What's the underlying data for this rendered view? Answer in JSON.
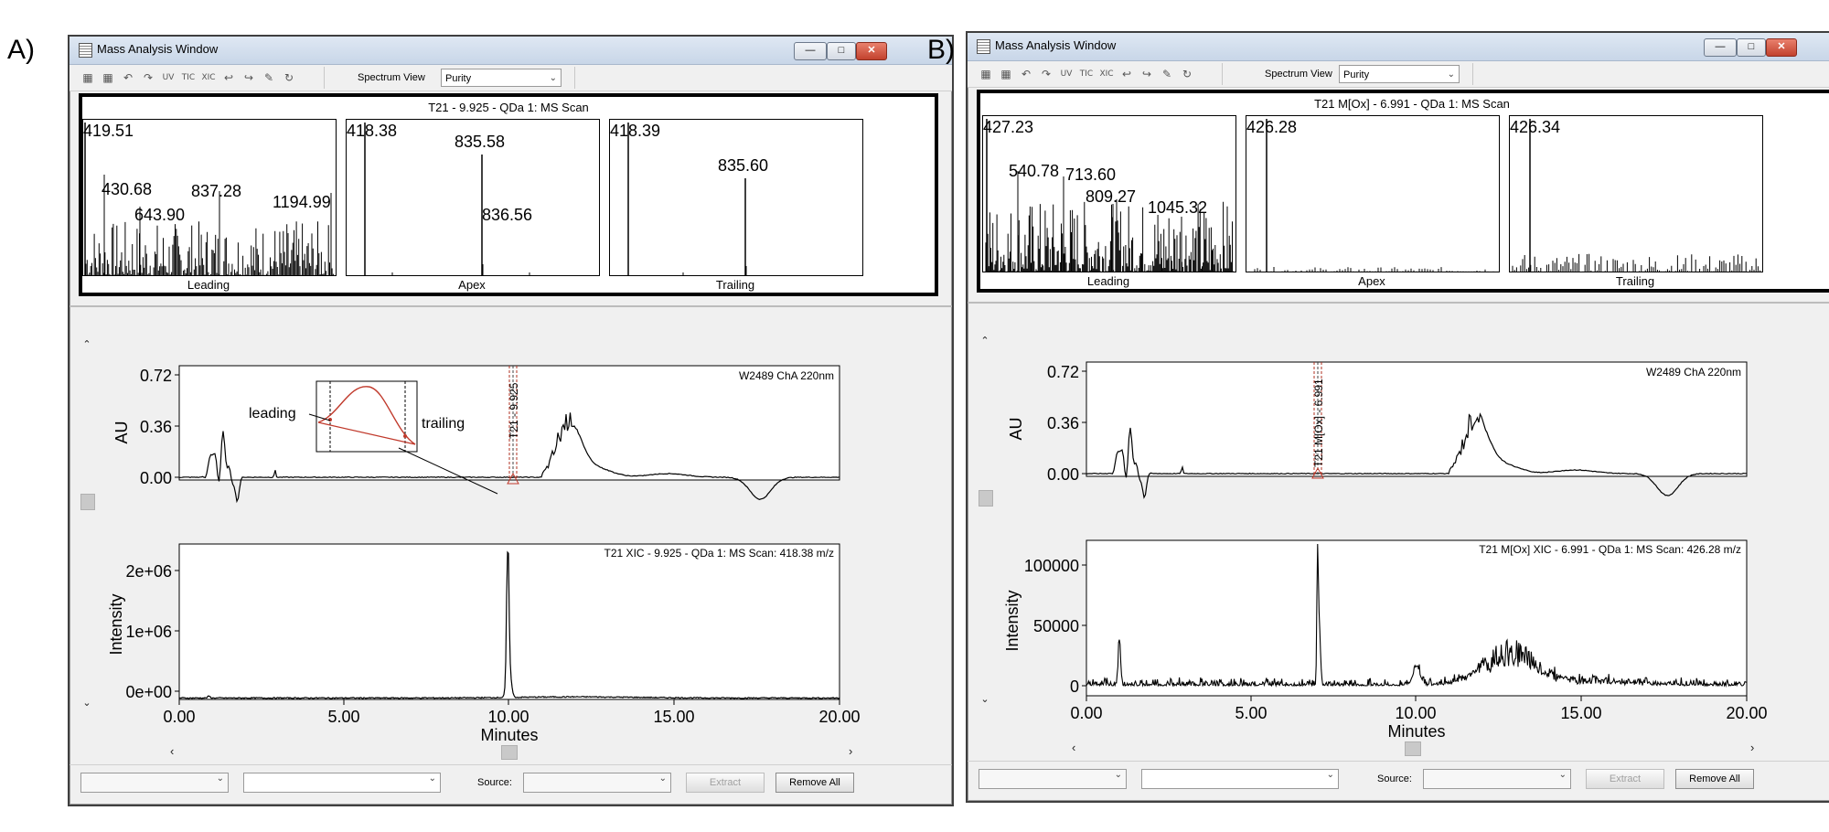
{
  "panels": [
    {
      "label": "A)",
      "window_title": "Mass Analysis Window",
      "toolbar": {
        "spectrum_view_label": "Spectrum View",
        "spectrum_view_value": "Purity"
      },
      "spectrum_title": "T21 - 9.925 - QDa 1: MS Scan",
      "spectra": [
        {
          "name": "Leading",
          "labels": [
            "419.51",
            "430.68",
            "643.90",
            "837.28",
            "1194.99"
          ]
        },
        {
          "name": "Apex",
          "labels": [
            "418.38",
            "835.58",
            "836.56"
          ]
        },
        {
          "name": "Trailing",
          "labels": [
            "418.39",
            "835.60"
          ]
        }
      ],
      "uv_chart": {
        "title": "W2489 ChA 220nm",
        "ylabel": "AU",
        "yticks": [
          "0.72",
          "0.36",
          "0.00"
        ],
        "marker_label": "T21 - 9.925",
        "inset": {
          "leading_label": "leading",
          "trailing_label": "trailing"
        }
      },
      "xic_chart": {
        "title": "T21 XIC - 9.925 - QDa 1: MS Scan: 418.38 m/z",
        "ylabel": "Intensity",
        "yticks": [
          "2e+06",
          "1e+06",
          "0e+00"
        ]
      },
      "xaxis": {
        "ticks": [
          "0.00",
          "5.00",
          "10.00",
          "15.00",
          "20.00"
        ],
        "label": "Minutes"
      },
      "bottom": {
        "source_label": "Source:",
        "extract_label": "Extract",
        "remove_all_label": "Remove All"
      }
    },
    {
      "label": "B)",
      "window_title": "Mass Analysis Window",
      "toolbar": {
        "spectrum_view_label": "Spectrum View",
        "spectrum_view_value": "Purity"
      },
      "spectrum_title": "T21 M[Ox] - 6.991 - QDa 1: MS Scan",
      "spectra": [
        {
          "name": "Leading",
          "labels": [
            "427.23",
            "540.78",
            "713.60",
            "809.27",
            "1045.32"
          ]
        },
        {
          "name": "Apex",
          "labels": [
            "426.28"
          ]
        },
        {
          "name": "Trailing",
          "labels": [
            "426.34"
          ]
        }
      ],
      "uv_chart": {
        "title": "W2489 ChA 220nm",
        "ylabel": "AU",
        "yticks": [
          "0.72",
          "0.36",
          "0.00"
        ],
        "marker_label": "T21 M[Ox] - 6.991"
      },
      "xic_chart": {
        "title": "T21 M[Ox] XIC - 6.991 - QDa 1: MS Scan: 426.28 m/z",
        "ylabel": "Intensity",
        "yticks": [
          "100000",
          "50000",
          "0"
        ]
      },
      "xaxis": {
        "ticks": [
          "0.00",
          "5.00",
          "10.00",
          "15.00",
          "20.00"
        ],
        "label": "Minutes"
      },
      "bottom": {
        "source_label": "Source:",
        "extract_label": "Extract",
        "remove_all_label": "Remove All"
      }
    }
  ],
  "colors": {
    "trace": "#000000",
    "marker": "#c0392b",
    "inset_curve": "#c0392b"
  }
}
